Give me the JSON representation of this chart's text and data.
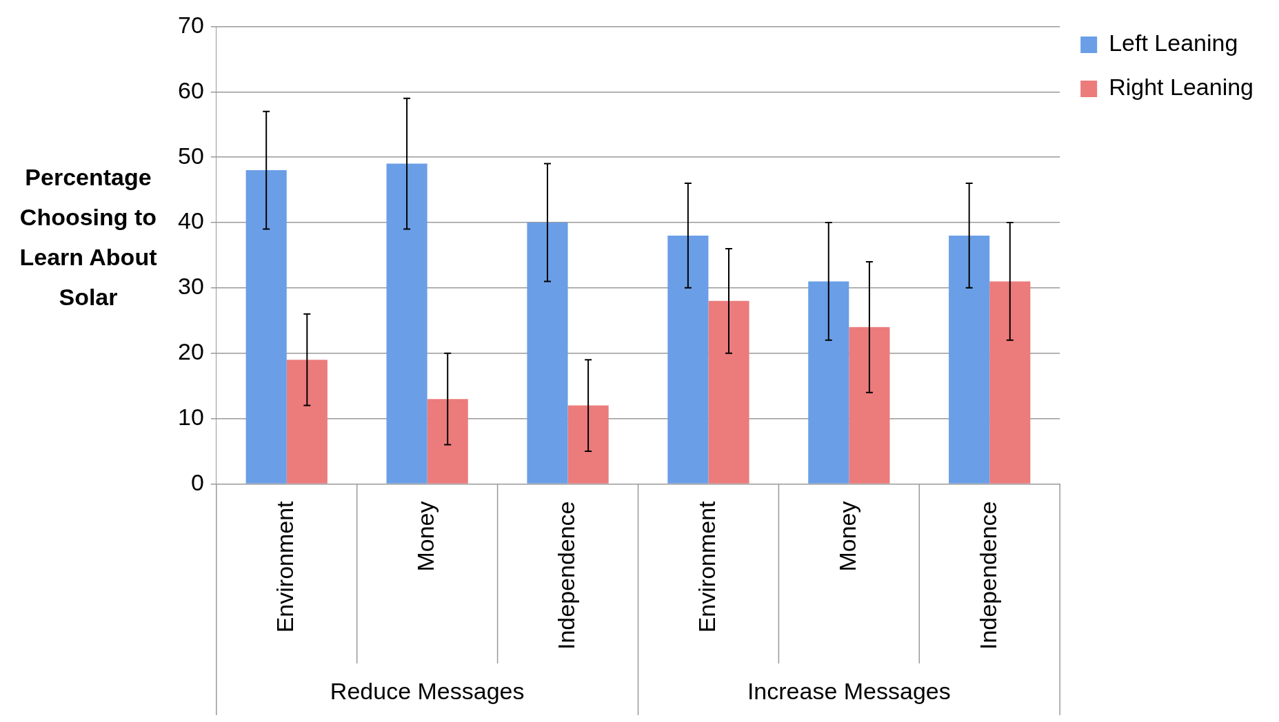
{
  "chart_data": {
    "type": "bar",
    "ylabel": "Percentage Choosing to Learn About Solar",
    "categories": [
      "Environment",
      "Money",
      "Independence",
      "Environment",
      "Money",
      "Independence"
    ],
    "annotations": [
      "Reduce Messages",
      "Increase Messages"
    ],
    "series": [
      {
        "name": "Left Leaning",
        "color": "#6a9ee6",
        "values": [
          48,
          49,
          40,
          38,
          31,
          38
        ],
        "errors": [
          9,
          10,
          9,
          8,
          9,
          8
        ]
      },
      {
        "name": "Right Leaning",
        "color": "#ec7b7b",
        "values": [
          19,
          13,
          12,
          28,
          24,
          31
        ],
        "errors": [
          7,
          7,
          7,
          8,
          10,
          9
        ]
      }
    ],
    "ylim": [
      0,
      70
    ],
    "yticks": [
      0,
      10,
      20,
      30,
      40,
      50,
      60,
      70
    ],
    "grid": "y",
    "legend": "top right"
  }
}
